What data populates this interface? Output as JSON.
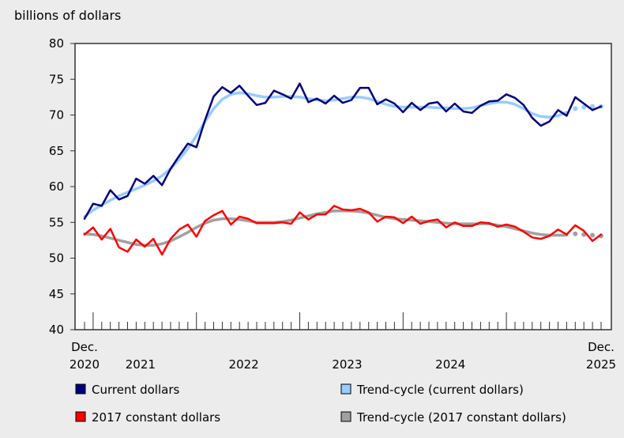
{
  "chart_data": {
    "type": "line",
    "ylabel": "billions of dollars",
    "ylim": [
      40,
      80
    ],
    "yticks": [
      40,
      45,
      50,
      55,
      60,
      65,
      70,
      75,
      80
    ],
    "x_start": "2020-12",
    "x_end": "2025-12",
    "xtick_labels": [
      {
        "month": 0,
        "lines": [
          "Dec.",
          "2020"
        ]
      },
      {
        "month": 6.5,
        "lines": [
          "",
          "2021"
        ]
      },
      {
        "month": 18.5,
        "lines": [
          "",
          "2022"
        ]
      },
      {
        "month": 30.5,
        "lines": [
          "",
          "2023"
        ]
      },
      {
        "month": 42.5,
        "lines": [
          "",
          "2024"
        ]
      },
      {
        "month": 60,
        "lines": [
          "Dec.",
          "2025"
        ]
      }
    ],
    "grid": false,
    "legend_position": "bottom",
    "series": [
      {
        "name": "Current dollars",
        "color": "#000080",
        "style": "line",
        "values": [
          55.5,
          57.6,
          57.3,
          59.5,
          58.2,
          58.7,
          61.1,
          60.4,
          61.5,
          60.2,
          62.5,
          64.3,
          66.0,
          65.5,
          69.3,
          72.6,
          73.9,
          73.1,
          74.1,
          72.7,
          71.4,
          71.7,
          73.4,
          72.9,
          72.3,
          74.4,
          71.8,
          72.3,
          71.6,
          72.7,
          71.7,
          72.1,
          73.8,
          73.8,
          71.5,
          72.2,
          71.6,
          70.4,
          71.7,
          70.7,
          71.6,
          71.8,
          70.5,
          71.6,
          70.5,
          70.3,
          71.3,
          71.9,
          72.0,
          72.9,
          72.4,
          71.4,
          69.6,
          68.5,
          69.1,
          70.7,
          69.9,
          72.5,
          71.6,
          70.7,
          71.2
        ]
      },
      {
        "name": "Trend-cycle (current dollars)",
        "color": "#99ccff",
        "style": "trend",
        "projected_from_index": 57,
        "values": [
          55.8,
          56.7,
          57.4,
          58.1,
          58.7,
          59.2,
          59.7,
          60.2,
          60.8,
          61.5,
          62.5,
          63.8,
          65.3,
          67.1,
          69.1,
          70.9,
          72.2,
          72.9,
          73.1,
          73.0,
          72.7,
          72.5,
          72.5,
          72.6,
          72.6,
          72.5,
          72.3,
          72.1,
          72.0,
          72.1,
          72.3,
          72.5,
          72.5,
          72.3,
          71.9,
          71.5,
          71.2,
          71.1,
          71.1,
          71.1,
          71.1,
          71.0,
          71.0,
          70.9,
          70.9,
          71.0,
          71.3,
          71.6,
          71.8,
          71.8,
          71.5,
          70.9,
          70.2,
          69.8,
          69.7,
          69.9,
          70.4,
          70.9,
          71.1,
          71.2,
          71.2
        ]
      },
      {
        "name": "2017 constant dollars",
        "color": "#ff0000",
        "style": "line",
        "values": [
          53.3,
          54.3,
          52.6,
          54.1,
          51.5,
          50.9,
          52.6,
          51.6,
          52.7,
          50.5,
          52.7,
          54.0,
          54.7,
          53.0,
          55.2,
          56.0,
          56.6,
          54.7,
          55.8,
          55.5,
          54.9,
          54.9,
          54.9,
          55.0,
          54.8,
          56.4,
          55.4,
          56.1,
          56.1,
          57.3,
          56.8,
          56.7,
          56.9,
          56.4,
          55.1,
          55.8,
          55.7,
          54.9,
          55.8,
          54.8,
          55.2,
          55.4,
          54.3,
          55.0,
          54.5,
          54.5,
          55.0,
          54.9,
          54.4,
          54.7,
          54.4,
          53.7,
          52.9,
          52.7,
          53.1,
          54.0,
          53.3,
          54.6,
          53.8,
          52.4,
          53.3
        ]
      },
      {
        "name": "Trend-cycle (2017 constant dollars)",
        "color": "#a0a0a0",
        "style": "trend",
        "projected_from_index": 57,
        "values": [
          53.4,
          53.3,
          53.1,
          52.8,
          52.5,
          52.2,
          51.9,
          51.8,
          51.8,
          52.0,
          52.4,
          53.0,
          53.6,
          54.3,
          54.9,
          55.3,
          55.5,
          55.5,
          55.4,
          55.2,
          55.0,
          55.0,
          55.0,
          55.1,
          55.3,
          55.6,
          55.9,
          56.2,
          56.4,
          56.6,
          56.6,
          56.6,
          56.5,
          56.3,
          56.0,
          55.7,
          55.5,
          55.4,
          55.3,
          55.2,
          55.1,
          55.0,
          54.9,
          54.8,
          54.8,
          54.8,
          54.8,
          54.8,
          54.6,
          54.4,
          54.1,
          53.8,
          53.5,
          53.3,
          53.2,
          53.2,
          53.2,
          53.4,
          53.3,
          53.2,
          53.1
        ]
      }
    ],
    "legend_order": [
      0,
      1,
      2,
      3
    ]
  }
}
